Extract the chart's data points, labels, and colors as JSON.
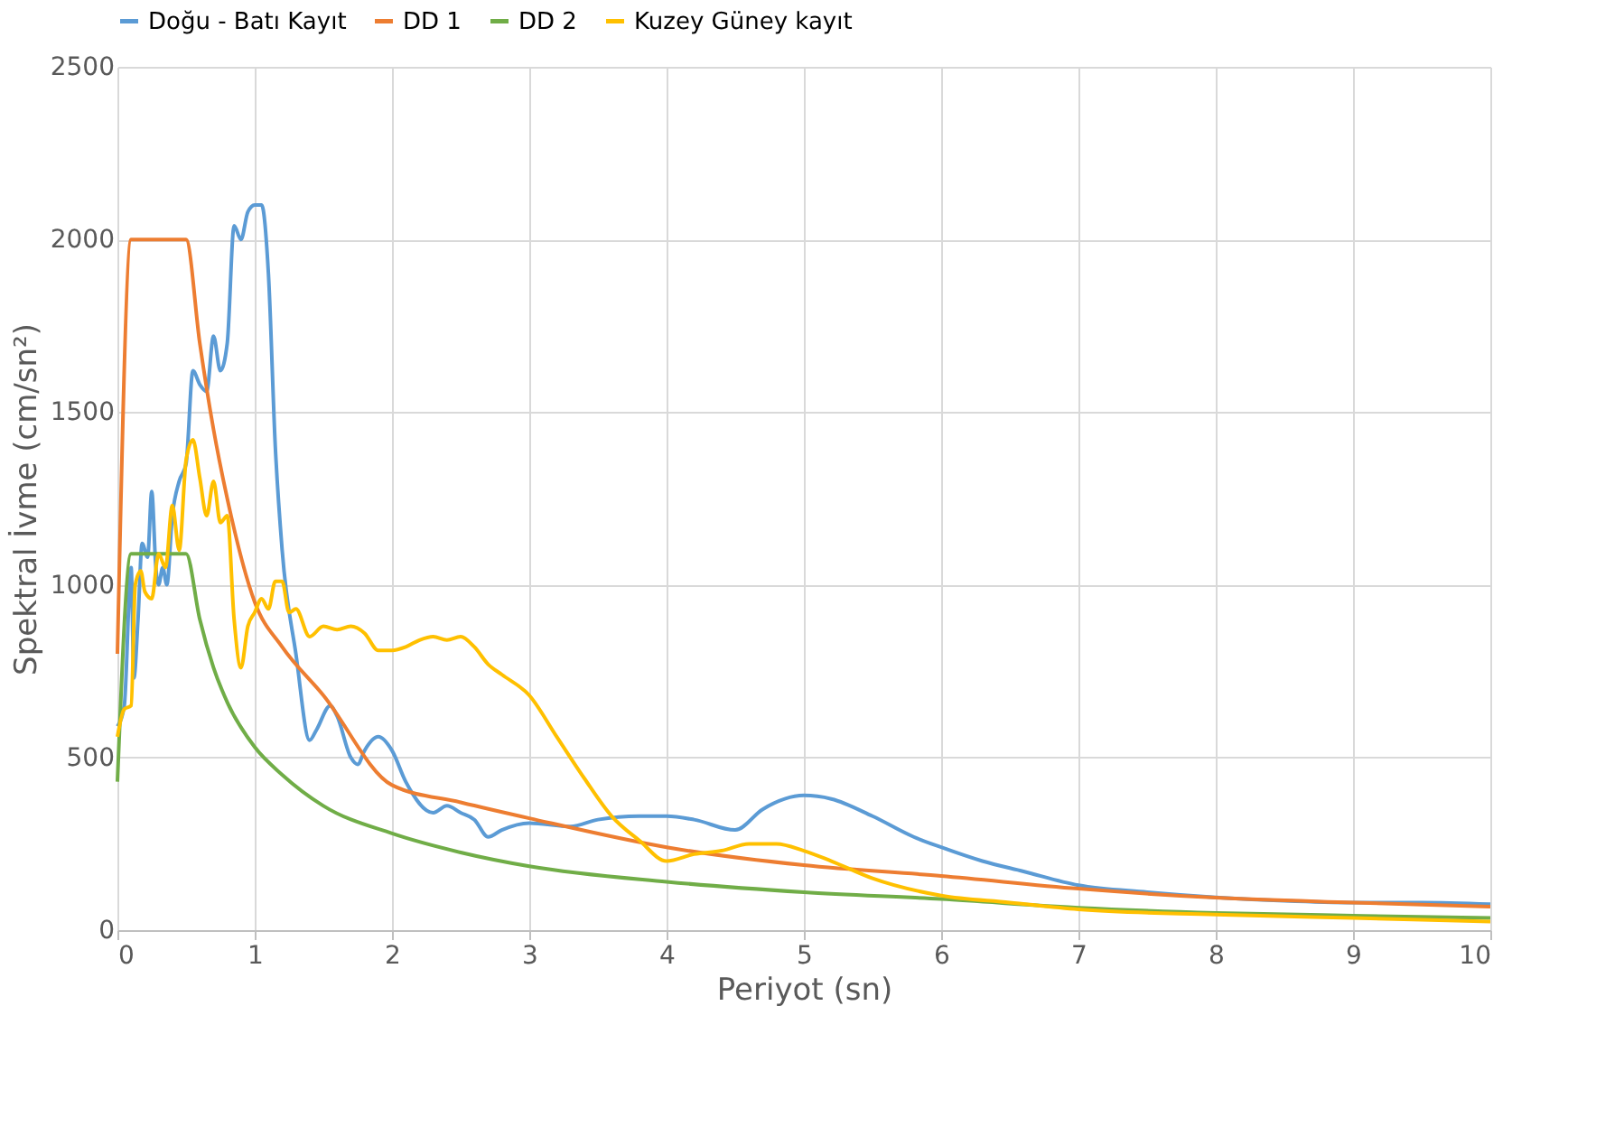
{
  "chart_data": {
    "type": "line",
    "xlabel": "Periyot (sn)",
    "ylabel": "Spektral İvme (cm/sn²)",
    "xlim": [
      0,
      10
    ],
    "xticks": [
      0,
      1,
      2,
      3,
      4,
      5,
      6,
      7,
      8,
      9,
      10
    ],
    "ylim": [
      0,
      2500
    ],
    "yticks": [
      0,
      500,
      1000,
      1500,
      2000,
      2500
    ],
    "grid": true,
    "legend": "top",
    "marker": "none",
    "line_style": "solid",
    "series": [
      {
        "name": "Doğu - Batı Kayıt",
        "color": "#5b9bd5",
        "x": [
          0,
          0.05,
          0.1,
          0.12,
          0.15,
          0.18,
          0.22,
          0.25,
          0.28,
          0.3,
          0.33,
          0.36,
          0.4,
          0.45,
          0.5,
          0.55,
          0.6,
          0.65,
          0.7,
          0.75,
          0.8,
          0.85,
          0.9,
          0.95,
          1.0,
          1.05,
          1.1,
          1.15,
          1.2,
          1.3,
          1.4,
          1.45,
          1.55,
          1.6,
          1.7,
          1.75,
          1.8,
          1.9,
          2.0,
          2.1,
          2.3,
          2.4,
          2.5,
          2.6,
          2.7,
          2.8,
          3.0,
          3.3,
          3.5,
          3.8,
          4.0,
          4.2,
          4.5,
          4.7,
          5.0,
          5.2,
          5.5,
          5.8,
          6.0,
          6.3,
          6.6,
          7.0,
          7.5,
          8.0,
          8.5,
          9.0,
          9.5,
          10
        ],
        "values": [
          590,
          650,
          1050,
          730,
          900,
          1120,
          1080,
          1270,
          1050,
          1000,
          1050,
          1000,
          1200,
          1300,
          1350,
          1620,
          1580,
          1560,
          1720,
          1620,
          1700,
          2040,
          2000,
          2080,
          2100,
          2100,
          1900,
          1400,
          1100,
          800,
          550,
          580,
          650,
          620,
          500,
          480,
          520,
          560,
          520,
          430,
          340,
          360,
          340,
          320,
          270,
          290,
          310,
          300,
          320,
          330,
          330,
          320,
          290,
          350,
          390,
          380,
          330,
          270,
          240,
          200,
          170,
          130,
          110,
          95,
          85,
          80,
          80,
          75
        ]
      },
      {
        "name": "DD 1",
        "color": "#ed7d31",
        "x": [
          0,
          0.1,
          0.5,
          0.6,
          0.7,
          0.8,
          1.0,
          1.2,
          1.5,
          2.0,
          2.5,
          3.0,
          4.0,
          5.0,
          6.0,
          7.0,
          8.0,
          9.0,
          10
        ],
        "values": [
          800,
          2000,
          2000,
          1700,
          1450,
          1250,
          950,
          820,
          680,
          420,
          370,
          324,
          240,
          188,
          157,
          120,
          94,
          80,
          68
        ]
      },
      {
        "name": "DD 2",
        "color": "#70ad47",
        "x": [
          0,
          0.1,
          0.5,
          0.6,
          0.7,
          0.8,
          1.0,
          1.2,
          1.5,
          2.0,
          2.5,
          3.0,
          4.0,
          5.0,
          6.0,
          7.0,
          8.0,
          9.0,
          10
        ],
        "values": [
          430,
          1090,
          1090,
          900,
          760,
          660,
          530,
          450,
          360,
          280,
          225,
          185,
          140,
          110,
          90,
          65,
          50,
          42,
          35
        ]
      },
      {
        "name": "Kuzey Güney kayıt",
        "color": "#ffc000",
        "x": [
          0,
          0.05,
          0.1,
          0.13,
          0.17,
          0.2,
          0.25,
          0.3,
          0.35,
          0.4,
          0.45,
          0.5,
          0.55,
          0.6,
          0.65,
          0.7,
          0.75,
          0.8,
          0.85,
          0.9,
          0.95,
          1.0,
          1.05,
          1.1,
          1.15,
          1.2,
          1.25,
          1.3,
          1.4,
          1.5,
          1.6,
          1.7,
          1.8,
          1.9,
          2.0,
          2.1,
          2.2,
          2.3,
          2.4,
          2.5,
          2.6,
          2.7,
          2.8,
          3.0,
          3.2,
          3.4,
          3.6,
          3.8,
          4.0,
          4.2,
          4.4,
          4.6,
          4.8,
          5.0,
          5.2,
          5.5,
          6.0,
          6.5,
          7.0,
          8.0,
          9.0,
          10
        ],
        "values": [
          560,
          640,
          650,
          1000,
          1040,
          980,
          960,
          1090,
          1050,
          1230,
          1100,
          1360,
          1420,
          1310,
          1200,
          1300,
          1180,
          1200,
          900,
          760,
          880,
          920,
          960,
          930,
          1010,
          1010,
          920,
          930,
          850,
          880,
          870,
          880,
          860,
          810,
          810,
          820,
          840,
          850,
          840,
          850,
          820,
          770,
          740,
          680,
          560,
          440,
          330,
          260,
          200,
          220,
          230,
          250,
          250,
          230,
          200,
          150,
          100,
          80,
          60,
          45,
          35,
          25
        ]
      }
    ]
  }
}
